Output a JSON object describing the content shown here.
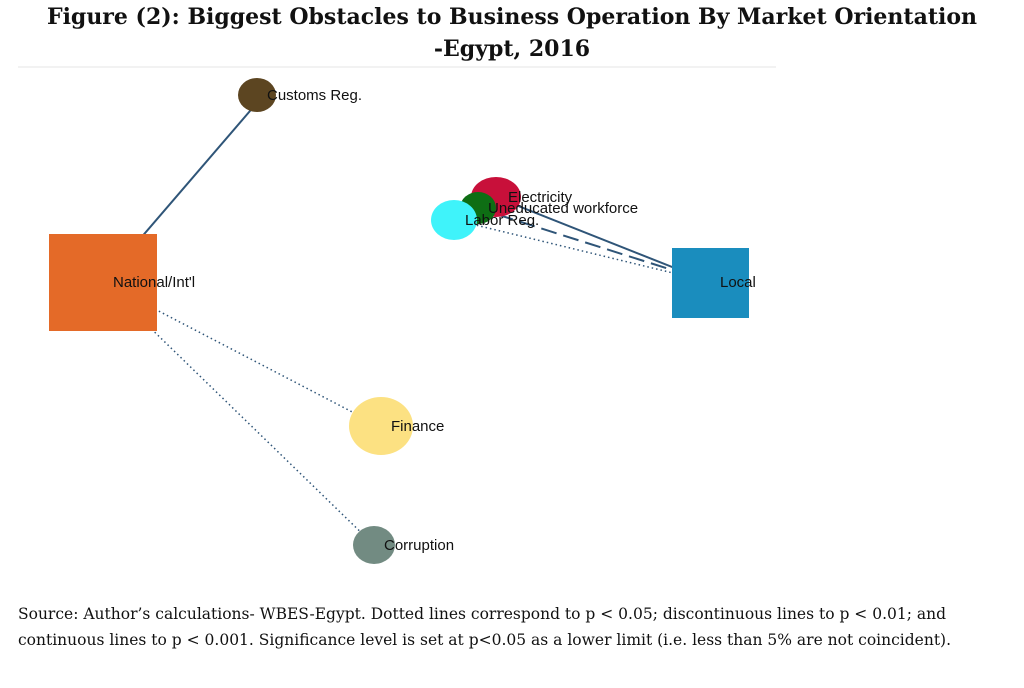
{
  "title": {
    "line1": "Figure (2): Biggest Obstacles to Business Operation By Market Orientation",
    "line2": "-Egypt, 2016"
  },
  "nodes": {
    "national": {
      "label": "National/Int'l",
      "color": "#E46A28",
      "shape": "square"
    },
    "local": {
      "label": "Local",
      "color": "#1A8DBE",
      "shape": "square"
    },
    "customs": {
      "label": "Customs Reg.",
      "color": "#5C4521",
      "shape": "circle"
    },
    "electricity": {
      "label": "Electricity",
      "color": "#C8103A",
      "shape": "circle"
    },
    "uneducated": {
      "label": "Uneducated workforce",
      "color": "#0E6E14",
      "shape": "circle"
    },
    "labor": {
      "label": "Labor Reg.",
      "color": "#3FF3FA",
      "shape": "circle"
    },
    "finance": {
      "label": "Finance",
      "color": "#FCE182",
      "shape": "circle"
    },
    "corruption": {
      "label": "Corruption",
      "color": "#728B82",
      "shape": "circle"
    }
  },
  "edges": [
    {
      "from": "national",
      "to": "customs",
      "style": "continuous"
    },
    {
      "from": "national",
      "to": "finance",
      "style": "dotted"
    },
    {
      "from": "national",
      "to": "corruption",
      "style": "dotted"
    },
    {
      "from": "local",
      "to": "electricity",
      "style": "continuous"
    },
    {
      "from": "local",
      "to": "uneducated",
      "style": "discontinuous"
    },
    {
      "from": "local",
      "to": "labor",
      "style": "dotted"
    }
  ],
  "edge_color": "#2F5578",
  "caption": "Source: Author’s calculations- WBES-Egypt. Dotted lines correspond to p < 0.05; discontinuous lines to p < 0.01; and continuous lines to p < 0.001. Significance level is set at p<0.05 as a lower limit (i.e. less than 5% are not coincident)."
}
